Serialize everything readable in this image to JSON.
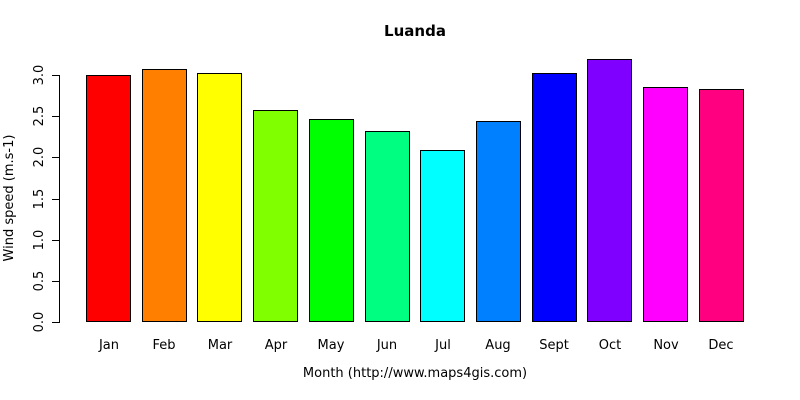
{
  "chart_data": {
    "type": "bar",
    "title": "Luanda",
    "xlabel": "Month (http://www.maps4gis.com)",
    "ylabel": "Wind speed (m.s-1)",
    "ylim": [
      0,
      3.2
    ],
    "yticks": [
      "0.0",
      "0.5",
      "1.0",
      "1.5",
      "2.0",
      "2.5",
      "3.0"
    ],
    "grid": false,
    "legend": "none",
    "categories": [
      "Jan",
      "Feb",
      "Mar",
      "Apr",
      "May",
      "Jun",
      "Jul",
      "Aug",
      "Sept",
      "Oct",
      "Nov",
      "Dec"
    ],
    "values": [
      3.0,
      3.07,
      3.02,
      2.58,
      2.47,
      2.32,
      2.09,
      2.44,
      3.02,
      3.19,
      2.86,
      2.83
    ],
    "bar_colors": [
      "#FF0000",
      "#FF8000",
      "#FFFF00",
      "#80FF00",
      "#00FF00",
      "#00FF80",
      "#00FFFF",
      "#0080FF",
      "#0000FF",
      "#8000FF",
      "#FF00FF",
      "#FF0080"
    ],
    "bar_border_color": "#000000",
    "axis_color": "#000000",
    "text_color": "#000000",
    "background_color": "#FFFFFF"
  }
}
